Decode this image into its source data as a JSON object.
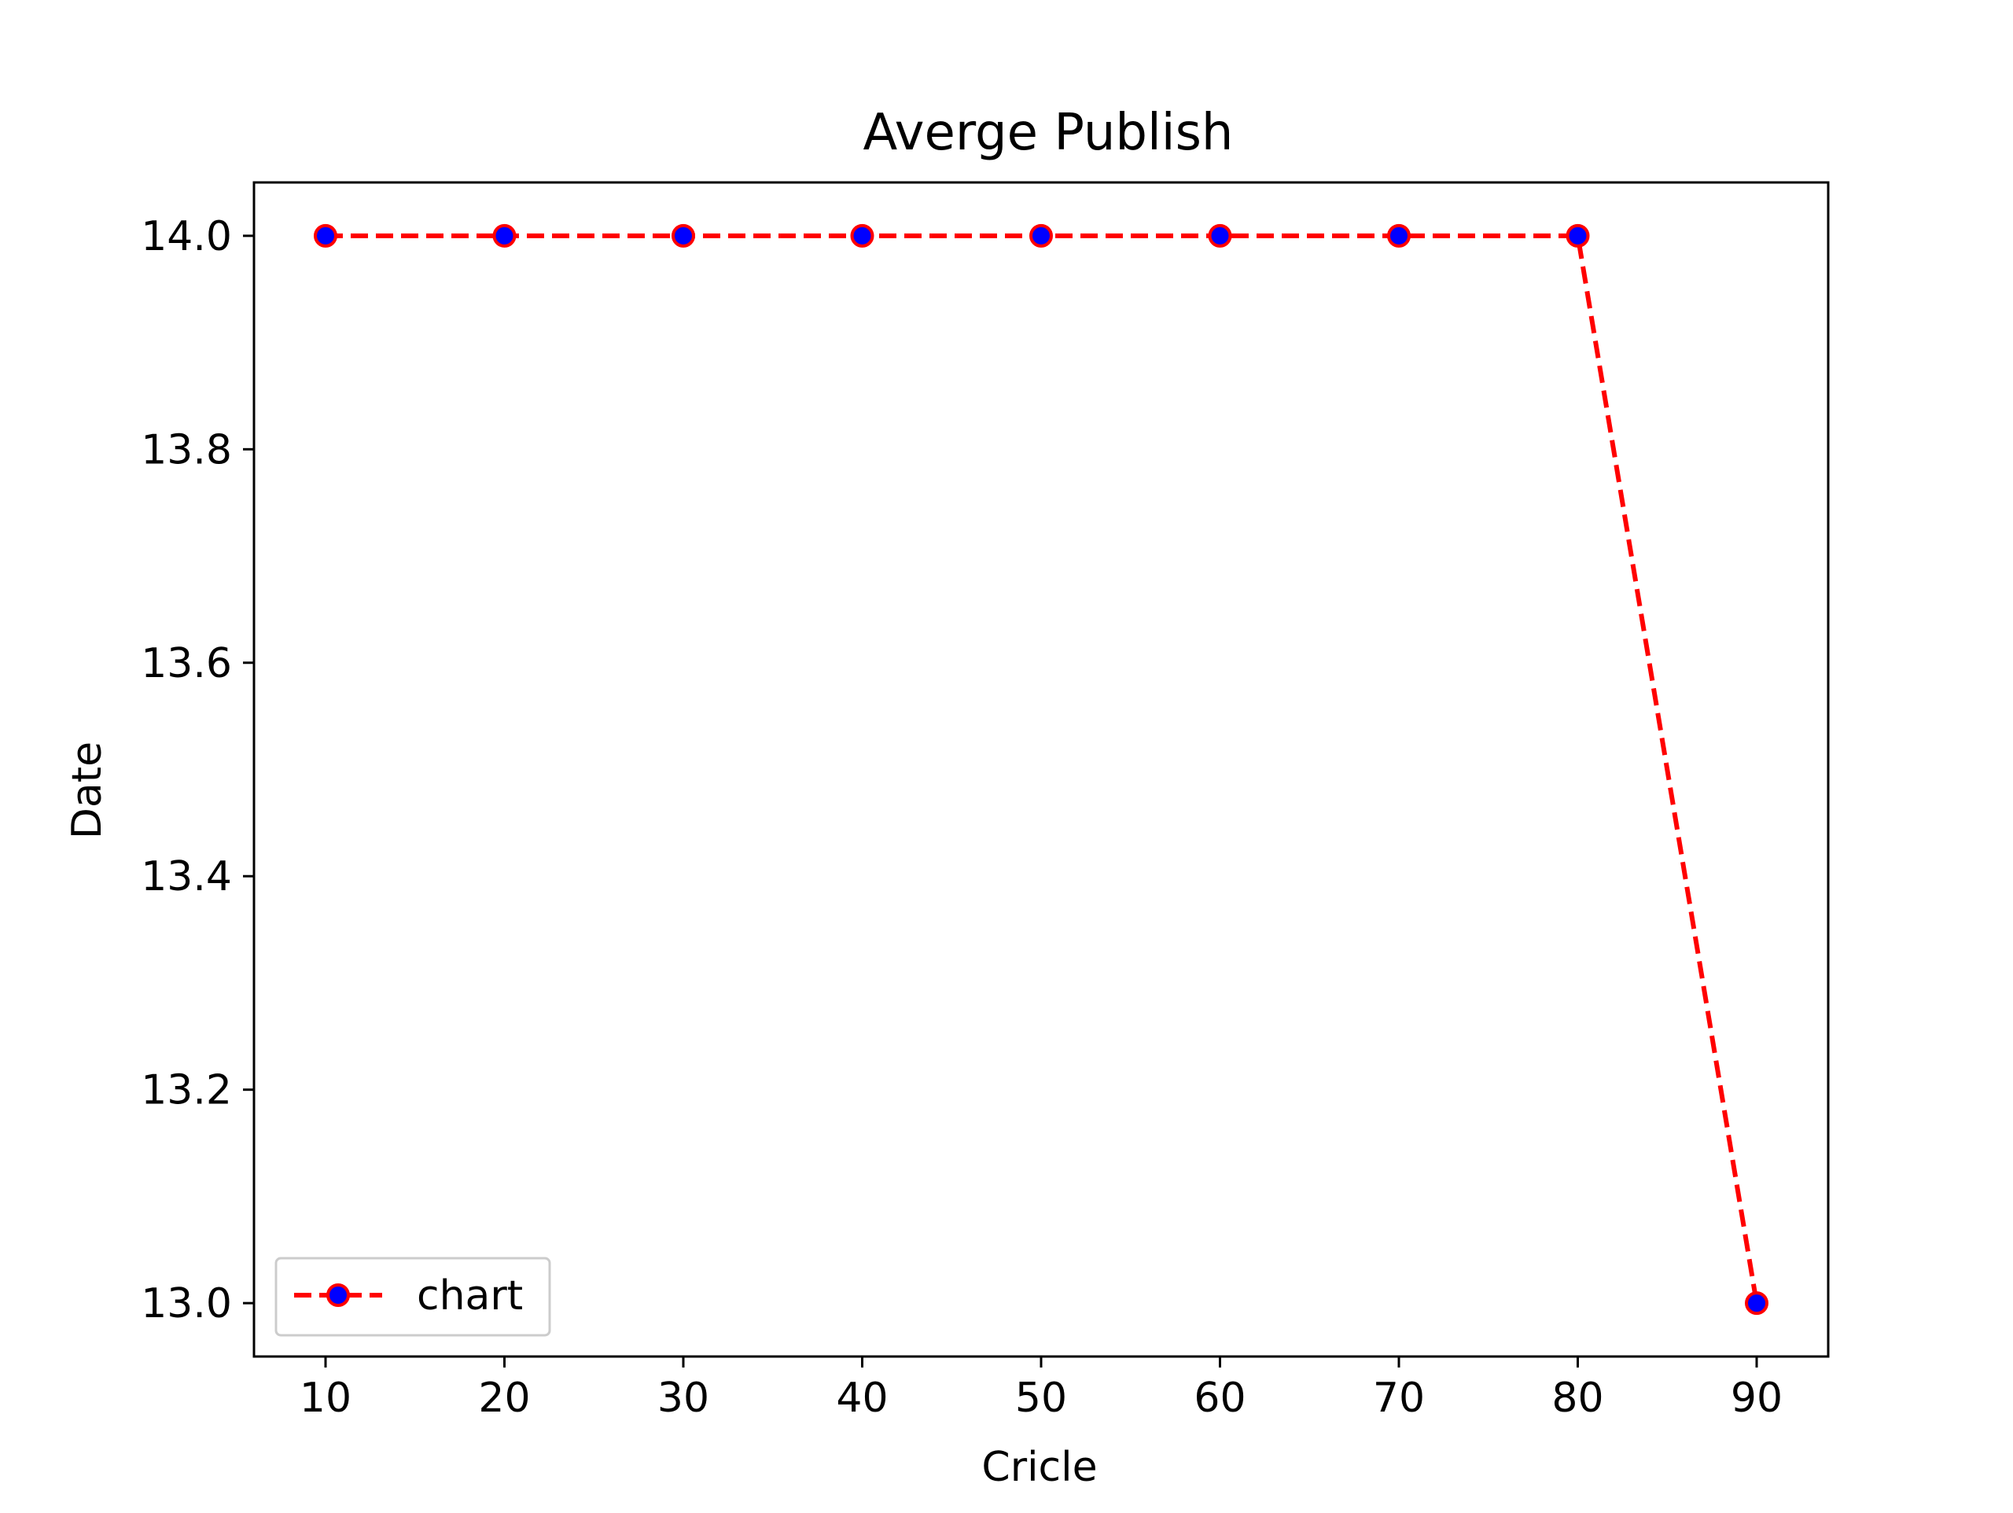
{
  "chart_data": {
    "type": "line",
    "title": "Averge Publish",
    "xlabel": "Cricle",
    "ylabel": "Date",
    "x": [
      10,
      20,
      30,
      40,
      50,
      60,
      70,
      80,
      90
    ],
    "xticks": [
      10,
      20,
      30,
      40,
      50,
      60,
      70,
      80,
      90
    ],
    "yticks": [
      "13.0",
      "13.2",
      "13.4",
      "13.6",
      "13.8",
      "14.0"
    ],
    "xlim": [
      6,
      94
    ],
    "ylim": [
      12.95,
      14.05
    ],
    "grid": false,
    "legend_position": "lower-left",
    "series": [
      {
        "name": "chart",
        "values": [
          14.0,
          14.0,
          14.0,
          14.0,
          14.0,
          14.0,
          14.0,
          14.0,
          13.0
        ],
        "line_color": "#ff0000",
        "line_style": "dashed",
        "marker": "circle",
        "marker_face_color": "#0000ff",
        "marker_edge_color": "#ff0000"
      }
    ]
  }
}
